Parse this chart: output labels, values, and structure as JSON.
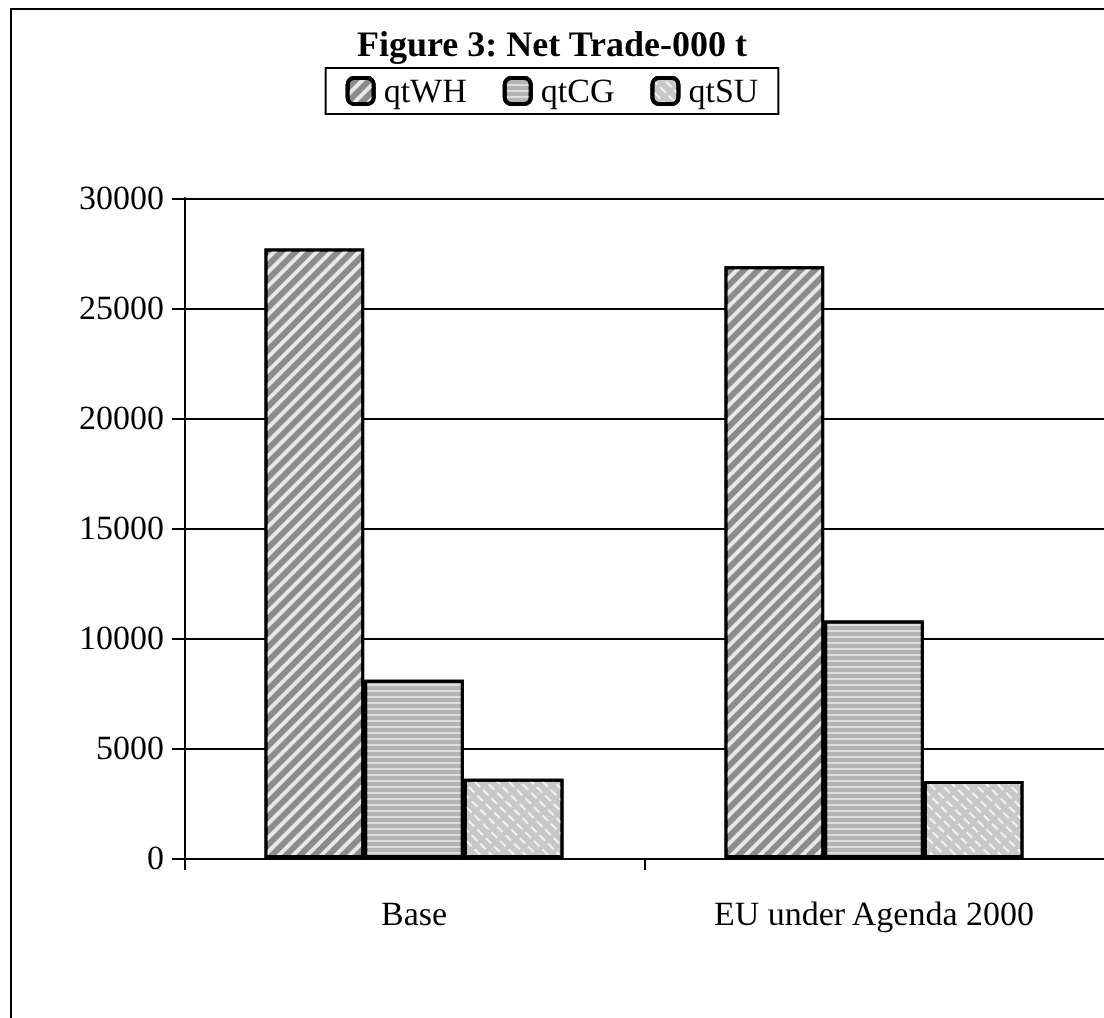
{
  "chart_data": {
    "type": "bar",
    "title": "Figure 3: Net Trade-000 t",
    "categories": [
      "Base",
      "EU under Agenda 2000"
    ],
    "series": [
      {
        "name": "qtWH",
        "color": "#8c8c8c",
        "values": [
          27700,
          26900
        ]
      },
      {
        "name": "qtCG",
        "color": "#b4b4b4",
        "values": [
          8100,
          10800
        ]
      },
      {
        "name": "qtSU",
        "color": "#c8c8c8",
        "values": [
          3600,
          3500
        ]
      }
    ],
    "ylim": [
      0,
      30000
    ],
    "yticks": [
      0,
      5000,
      10000,
      15000,
      20000,
      25000,
      30000
    ],
    "grid": "y",
    "legend": "top"
  }
}
